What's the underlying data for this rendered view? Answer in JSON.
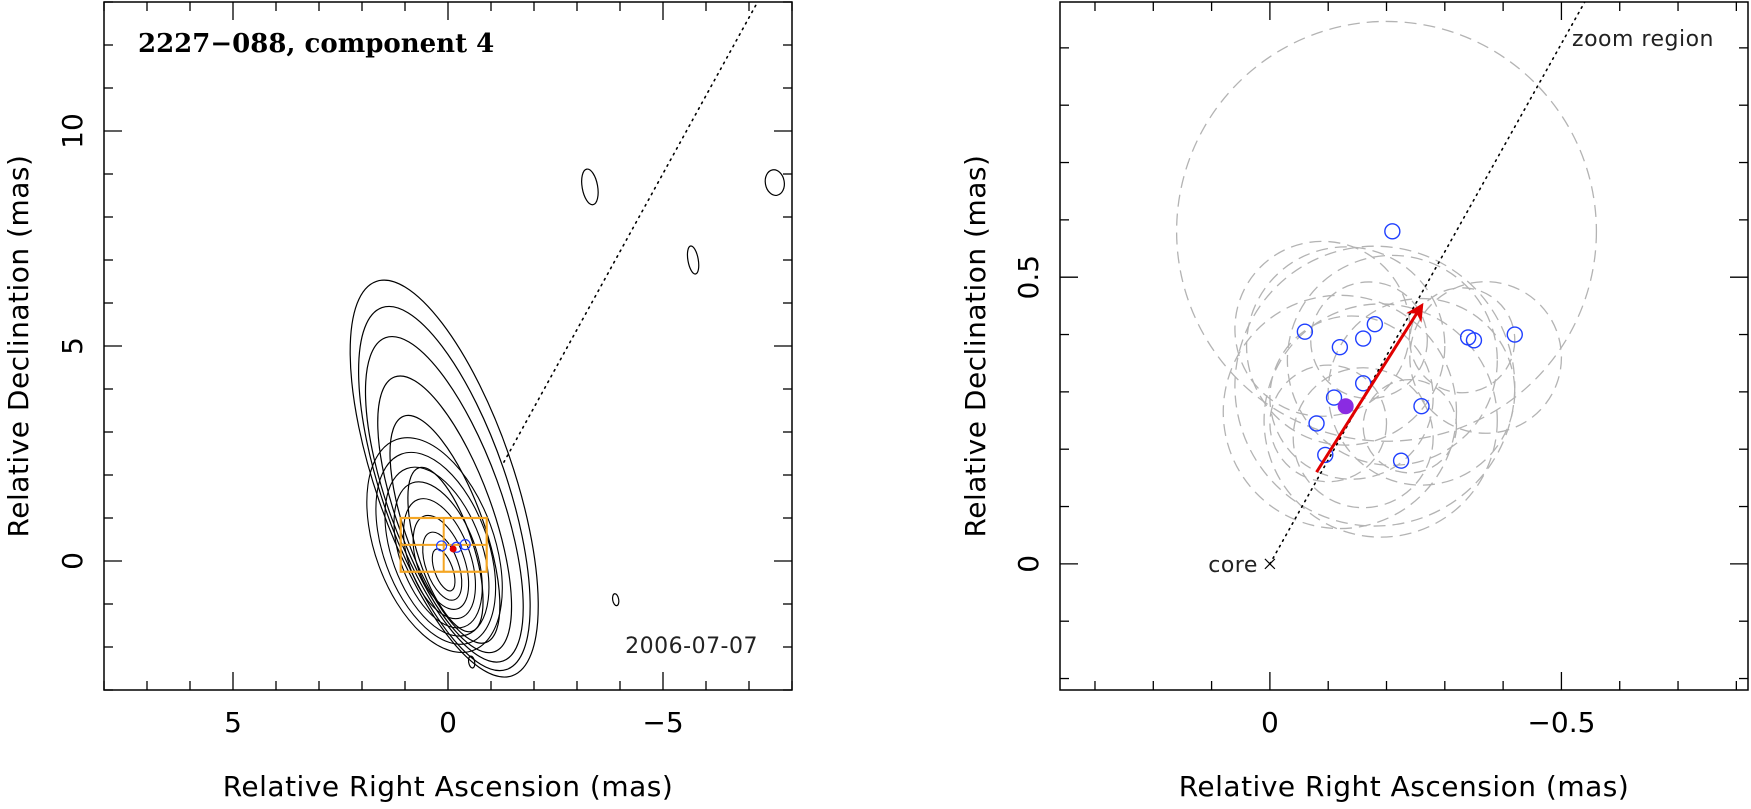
{
  "chart_data": [
    {
      "type": "contour",
      "title": "2227−088, component 4",
      "epoch": "2006-07-07",
      "xlabel": "Relative Right Ascension (mas)",
      "ylabel": "Relative Declination (mas)",
      "xlim": [
        8,
        -8
      ],
      "ylim": [
        -3,
        13
      ],
      "x_major_ticks": [
        5,
        0,
        -5
      ],
      "x_tick_labels": [
        "5",
        "0",
        "−5"
      ],
      "y_major_ticks": [
        0,
        5,
        10
      ],
      "y_tick_labels": [
        "0",
        "5",
        "10"
      ],
      "grid": false,
      "jet_direction_line": {
        "from": [
          -1.3,
          2.3
        ],
        "to": [
          -7.2,
          13
        ]
      },
      "zoom_box": {
        "x": [
          1.1,
          -0.9
        ],
        "y": [
          -0.25,
          1.0
        ],
        "grid": true
      },
      "main_contours": {
        "center": [
          0.05,
          -0.35
        ],
        "ellipses": [
          {
            "rx": 0.65,
            "ry": 2.0,
            "angle": -18
          },
          {
            "rx": 0.9,
            "ry": 2.8,
            "angle": -20
          },
          {
            "rx": 1.1,
            "ry": 3.4,
            "angle": -20
          },
          {
            "rx": 1.3,
            "ry": 4.0,
            "angle": -20
          },
          {
            "rx": 1.45,
            "ry": 4.45,
            "angle": -19
          },
          {
            "rx": 1.6,
            "ry": 4.85,
            "angle": -19
          }
        ]
      },
      "isolated_contours": [
        {
          "x": -3.3,
          "y": 8.7,
          "rx": 0.18,
          "ry": 0.42
        },
        {
          "x": -5.7,
          "y": 7.0,
          "rx": 0.12,
          "ry": 0.33
        },
        {
          "x": -7.6,
          "y": 8.8,
          "rx": 0.22,
          "ry": 0.3
        },
        {
          "x": -3.9,
          "y": -0.9,
          "rx": 0.07,
          "ry": 0.14
        },
        {
          "x": -0.55,
          "y": -2.35,
          "rx": 0.07,
          "ry": 0.14
        }
      ],
      "component_positions": [
        {
          "x": -0.2,
          "y": 0.32
        },
        {
          "x": 0.15,
          "y": 0.35
        },
        {
          "x": -0.4,
          "y": 0.38
        }
      ],
      "highlight_position": {
        "x": -0.12,
        "y": 0.28
      }
    },
    {
      "type": "scatter",
      "title": "zoom region",
      "xlabel": "Relative Right Ascension (mas)",
      "ylabel": "Relative Declination (mas)",
      "xlim": [
        0.36,
        -0.82
      ],
      "ylim": [
        -0.22,
        0.98
      ],
      "x_major_ticks": [
        0,
        -0.5
      ],
      "x_tick_labels": [
        "0",
        "−0.5"
      ],
      "y_major_ticks": [
        0,
        0.5
      ],
      "y_tick_labels": [
        "0",
        "0.5"
      ],
      "grid": false,
      "core_label": "core",
      "core_position": {
        "x": 0,
        "y": 0
      },
      "jet_direction_line": {
        "from": [
          0,
          0
        ],
        "to": [
          -0.54,
          0.98
        ]
      },
      "component_positions": [
        {
          "x": -0.21,
          "y": 0.58
        },
        {
          "x": -0.06,
          "y": 0.405
        },
        {
          "x": -0.12,
          "y": 0.378
        },
        {
          "x": -0.16,
          "y": 0.393
        },
        {
          "x": -0.18,
          "y": 0.418
        },
        {
          "x": -0.34,
          "y": 0.395
        },
        {
          "x": -0.35,
          "y": 0.39
        },
        {
          "x": -0.42,
          "y": 0.4
        },
        {
          "x": -0.16,
          "y": 0.315
        },
        {
          "x": -0.11,
          "y": 0.29
        },
        {
          "x": -0.08,
          "y": 0.245
        },
        {
          "x": -0.26,
          "y": 0.275
        },
        {
          "x": -0.095,
          "y": 0.19
        },
        {
          "x": -0.225,
          "y": 0.18
        }
      ],
      "mean_position": {
        "x": -0.13,
        "y": 0.275
      },
      "motion_vector": {
        "from": [
          -0.08,
          0.16
        ],
        "to": [
          -0.26,
          0.45
        ]
      },
      "error_circles": [
        {
          "x": -0.2,
          "y": 0.58,
          "r": 0.36
        },
        {
          "x": -0.09,
          "y": 0.41,
          "r": 0.15
        },
        {
          "x": -0.13,
          "y": 0.38,
          "r": 0.17
        },
        {
          "x": -0.17,
          "y": 0.39,
          "r": 0.1
        },
        {
          "x": -0.21,
          "y": 0.355,
          "r": 0.18
        },
        {
          "x": -0.26,
          "y": 0.3,
          "r": 0.16
        },
        {
          "x": -0.33,
          "y": 0.39,
          "r": 0.09
        },
        {
          "x": -0.37,
          "y": 0.36,
          "r": 0.13
        },
        {
          "x": -0.14,
          "y": 0.29,
          "r": 0.14
        },
        {
          "x": -0.1,
          "y": 0.245,
          "r": 0.1
        },
        {
          "x": -0.12,
          "y": 0.265,
          "r": 0.2
        },
        {
          "x": -0.24,
          "y": 0.24,
          "r": 0.08
        },
        {
          "x": -0.16,
          "y": 0.22,
          "r": 0.12
        },
        {
          "x": -0.19,
          "y": 0.25,
          "r": 0.2
        },
        {
          "x": -0.18,
          "y": 0.31,
          "r": 0.24
        }
      ]
    }
  ],
  "colors": {
    "axis": "#000000",
    "contour": "#000000",
    "zoom_box": "#f5a623",
    "component_marker": "#1f3fff",
    "highlight_marker": "#8a2be2",
    "motion_vector": "#e00000",
    "error_circle": "#b3b3b3",
    "jet_line": "#000000"
  }
}
